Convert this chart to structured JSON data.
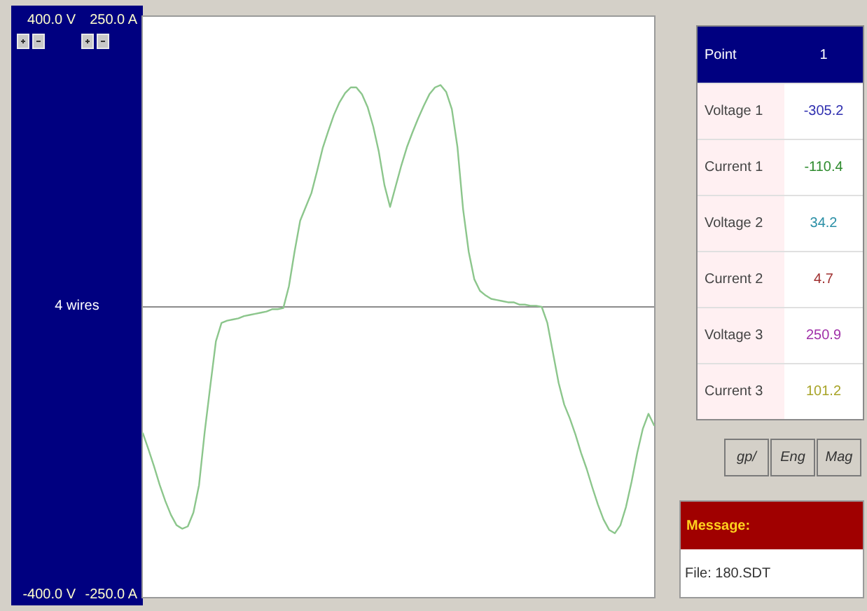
{
  "chart_data": [
    {
      "type": "line",
      "annotations": [
        "4 wires"
      ],
      "categories": [
        null,
        null,
        null,
        null,
        null,
        null,
        null,
        null,
        null,
        null,
        null,
        null,
        null,
        null,
        null,
        null,
        null,
        null,
        null,
        null,
        null,
        null,
        null,
        null,
        null,
        null,
        null,
        null,
        null,
        null,
        null,
        null,
        null,
        null,
        null,
        null,
        null,
        null,
        null,
        null,
        null,
        null,
        null,
        null,
        null,
        null,
        null,
        null,
        null,
        null,
        null,
        null,
        null,
        null,
        null,
        null,
        null,
        null,
        null,
        null,
        null,
        null,
        null,
        null,
        null,
        null,
        null,
        null,
        null,
        null,
        null,
        null,
        null,
        null,
        null,
        null,
        null,
        null,
        null,
        null,
        null,
        null,
        null,
        null,
        null,
        null,
        null,
        null,
        null,
        null,
        null,
        null
      ],
      "series": [
        {
          "color": "#8cc68c",
          "values": [
            -110,
            -124,
            -139,
            -155,
            -169,
            -181,
            -190,
            -193,
            -191,
            -179,
            -155,
            -109,
            -69,
            -30,
            -14,
            -12,
            -11,
            -10,
            -8,
            -7,
            -6,
            -5,
            -4,
            -2,
            -2,
            -1,
            18,
            48,
            75,
            87,
            99,
            118,
            138,
            153,
            167,
            178,
            186,
            191,
            191,
            185,
            174,
            157,
            135,
            106,
            87,
            105,
            123,
            139,
            152,
            164,
            175,
            185,
            191,
            193,
            187,
            172,
            139,
            85,
            48,
            24,
            14,
            10,
            7,
            6,
            5,
            4,
            4,
            2,
            2,
            1,
            1,
            0,
            -14,
            -40,
            -66,
            -85,
            -97,
            -111,
            -127,
            -141,
            -157,
            -172,
            -185,
            -194,
            -197,
            -190,
            -174,
            -152,
            -127,
            -106,
            -93,
            -103
          ]
        }
      ],
      "ylim": [
        -250,
        250
      ],
      "yticks": [
        {
          "value": 250,
          "label": "250.0 A"
        },
        {
          "value": -250,
          "label": "-250.0 A"
        }
      ],
      "y2lim": [
        -400,
        400
      ],
      "y2ticks": [
        {
          "value": 400,
          "label": "400.0 V"
        },
        {
          "value": -400,
          "label": "-400.0 V"
        }
      ],
      "ref_lines": [
        {
          "axis": "y",
          "value": 0,
          "color": "#8c8c8c"
        }
      ],
      "marker": "none",
      "line_style": "solid",
      "tick_labels": "y"
    },
    {
      "type": "other",
      "annotations": [
        "Point",
        "1",
        "Voltage 1",
        "-305.2",
        "Current 1",
        "-110.4",
        "Voltage 2",
        "34.2",
        "Current 2",
        "4.7",
        "Voltage 3",
        "250.9",
        "Current 3",
        "101.2",
        "gp/",
        "Eng",
        "Mag",
        "Message:",
        "File: 180.SDT"
      ]
    }
  ]
}
